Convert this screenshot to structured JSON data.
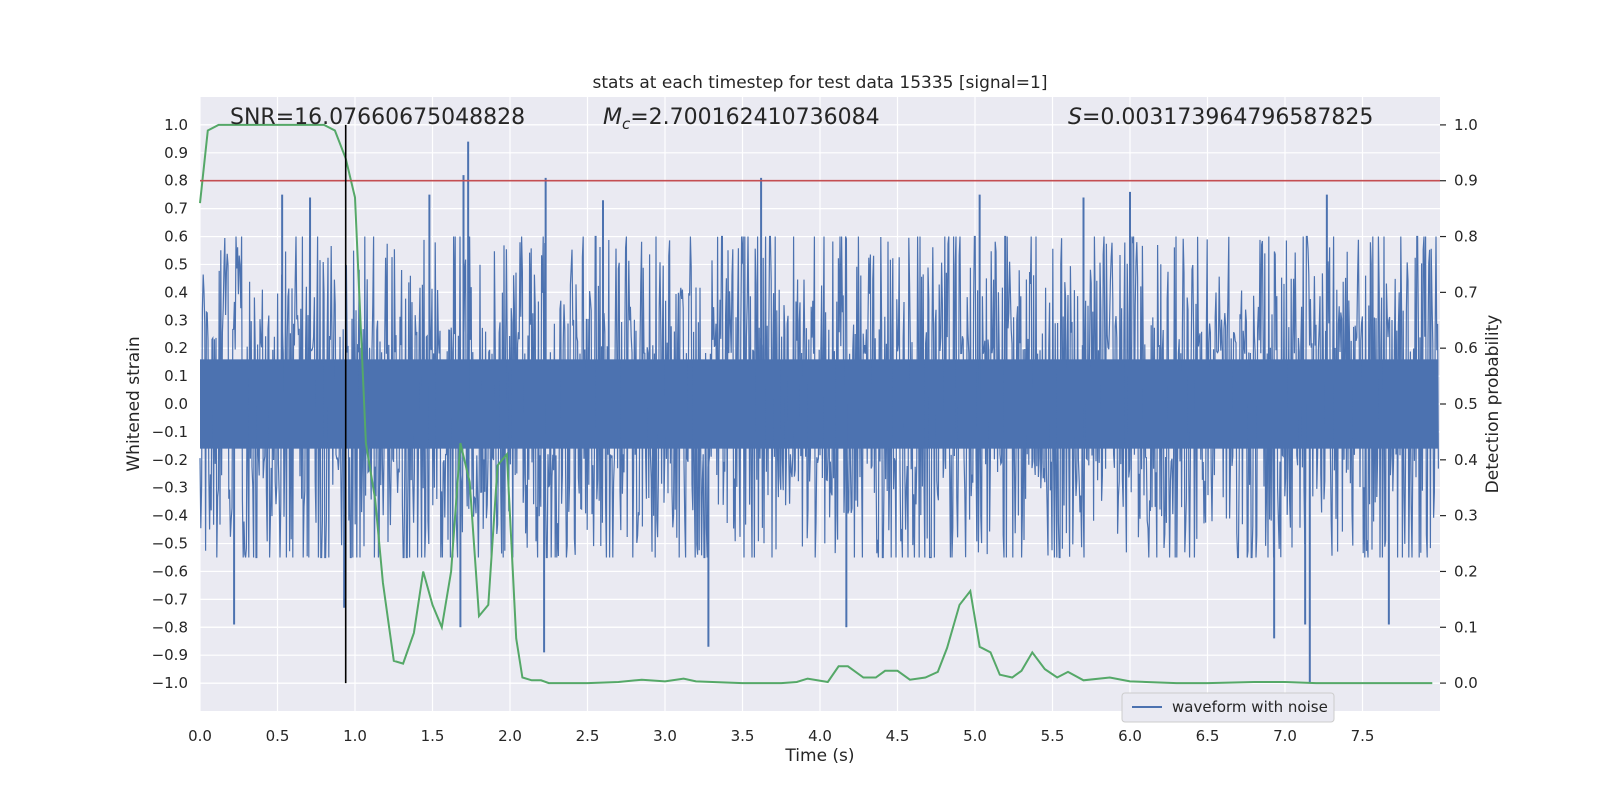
{
  "chart_data": {
    "type": "line",
    "title": "stats at each timestep for test data 15335 [signal=1]",
    "xlabel": "Time (s)",
    "ylabel": "Whitened strain",
    "ylabel_right": "Detection probability",
    "xlim": [
      0.0,
      8.0
    ],
    "ylim": [
      -1.1,
      1.1
    ],
    "ylim_right": [
      -0.05,
      1.05
    ],
    "x_ticks": [
      "0.0",
      "0.5",
      "1.0",
      "1.5",
      "2.0",
      "2.5",
      "3.0",
      "3.5",
      "4.0",
      "4.5",
      "5.0",
      "5.5",
      "6.0",
      "6.5",
      "7.0",
      "7.5"
    ],
    "y_ticks": [
      "1.0",
      "0.9",
      "0.8",
      "0.7",
      "0.6",
      "0.5",
      "0.4",
      "0.3",
      "0.2",
      "0.1",
      "0.0",
      "−0.1",
      "−0.2",
      "−0.3",
      "−0.4",
      "−0.5",
      "−0.6",
      "−0.7",
      "−0.8",
      "−0.9",
      "−1.0"
    ],
    "y_ticks_right": [
      "1.0",
      "0.9",
      "0.8",
      "0.7",
      "0.6",
      "0.5",
      "0.4",
      "0.3",
      "0.2",
      "0.1",
      "0.0"
    ],
    "grid": true,
    "legend": {
      "position": "lower-right",
      "entries": [
        "waveform with noise"
      ]
    },
    "annotations": {
      "snr": "SNR=16.07660675048828",
      "mc_symbol": "M",
      "mc_sub": "c",
      "mc_value": "=2.700162410736084",
      "s_symbol": "S",
      "s_value": "=0.003173964796587825"
    },
    "threshold_right": 0.9,
    "event_time": 0.94,
    "series": [
      {
        "name": "waveform with noise",
        "axis": "left",
        "color": "#4c72b0",
        "x_range": [
          0.0,
          7.99
        ],
        "envelope_typical": [
          -0.55,
          0.6
        ],
        "peaks": [
          {
            "x": 0.53,
            "y": 0.75
          },
          {
            "x": 0.71,
            "y": 0.74
          },
          {
            "x": 0.93,
            "y": -0.73
          },
          {
            "x": 1.48,
            "y": 0.75
          },
          {
            "x": 1.7,
            "y": 0.82
          },
          {
            "x": 1.73,
            "y": 0.94
          },
          {
            "x": 1.68,
            "y": -0.8
          },
          {
            "x": 2.23,
            "y": 0.81
          },
          {
            "x": 2.22,
            "y": -0.89
          },
          {
            "x": 2.6,
            "y": 0.73
          },
          {
            "x": 3.28,
            "y": -0.87
          },
          {
            "x": 3.62,
            "y": 0.81
          },
          {
            "x": 4.17,
            "y": -0.8
          },
          {
            "x": 5.03,
            "y": 0.75
          },
          {
            "x": 5.7,
            "y": 0.74
          },
          {
            "x": 6.0,
            "y": 0.76
          },
          {
            "x": 6.93,
            "y": -0.84
          },
          {
            "x": 7.13,
            "y": -0.79
          },
          {
            "x": 7.16,
            "y": -1.0
          },
          {
            "x": 7.27,
            "y": 0.75
          },
          {
            "x": 7.67,
            "y": -0.79
          },
          {
            "x": 0.22,
            "y": -0.79
          }
        ]
      },
      {
        "name": "",
        "axis": "right",
        "color": "#55a868",
        "x": [
          0.0,
          0.05,
          0.12,
          0.2,
          0.3,
          0.4,
          0.5,
          0.6,
          0.7,
          0.8,
          0.87,
          0.94,
          1.0,
          1.07,
          1.13,
          1.18,
          1.25,
          1.31,
          1.38,
          1.44,
          1.5,
          1.56,
          1.62,
          1.68,
          1.74,
          1.8,
          1.86,
          1.92,
          1.98,
          2.04,
          2.08,
          2.14,
          2.2,
          2.25,
          2.32,
          2.5,
          2.7,
          2.85,
          3.0,
          3.12,
          3.2,
          3.5,
          3.75,
          3.85,
          3.92,
          4.05,
          4.12,
          4.18,
          4.28,
          4.36,
          4.42,
          4.5,
          4.58,
          4.68,
          4.76,
          4.82,
          4.9,
          4.97,
          5.03,
          5.1,
          5.16,
          5.24,
          5.3,
          5.37,
          5.45,
          5.53,
          5.6,
          5.7,
          5.87,
          6.0,
          6.3,
          6.5,
          6.8,
          7.0,
          7.2,
          7.5,
          7.8,
          7.95
        ],
        "y": [
          0.86,
          0.99,
          1.0,
          1.0,
          1.0,
          1.0,
          1.0,
          1.0,
          1.0,
          1.0,
          0.99,
          0.94,
          0.87,
          0.43,
          0.33,
          0.18,
          0.04,
          0.035,
          0.09,
          0.2,
          0.14,
          0.1,
          0.2,
          0.43,
          0.36,
          0.12,
          0.14,
          0.39,
          0.41,
          0.08,
          0.01,
          0.005,
          0.005,
          0.0,
          0.0,
          0.0,
          0.002,
          0.006,
          0.003,
          0.008,
          0.003,
          0.0,
          0.0,
          0.002,
          0.008,
          0.002,
          0.03,
          0.03,
          0.01,
          0.01,
          0.022,
          0.022,
          0.006,
          0.01,
          0.02,
          0.063,
          0.14,
          0.165,
          0.065,
          0.055,
          0.015,
          0.01,
          0.022,
          0.055,
          0.025,
          0.01,
          0.02,
          0.005,
          0.01,
          0.003,
          0.0,
          0.0,
          0.002,
          0.002,
          0.0,
          0.0,
          0.0,
          0.0
        ]
      }
    ]
  }
}
